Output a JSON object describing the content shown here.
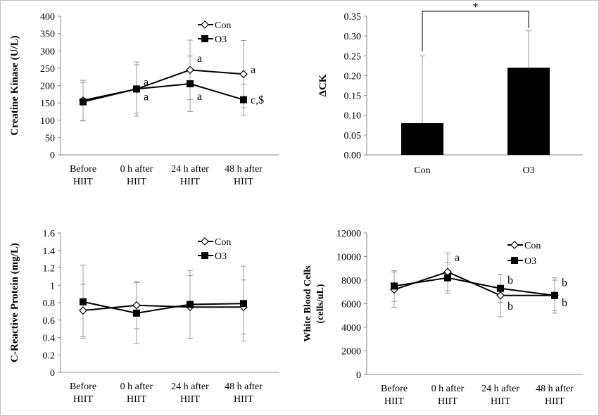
{
  "chart_data": [
    {
      "type": "line",
      "ylabel": "Creatine Kinase (U/L)",
      "ylim": [
        0,
        400
      ],
      "yticks": [
        0,
        50,
        100,
        150,
        200,
        250,
        300,
        350,
        400
      ],
      "categories": [
        [
          "Before",
          "HIIT"
        ],
        [
          "0 h after",
          "HIIT"
        ],
        [
          "24 h after",
          "HIIT"
        ],
        [
          "48 h after",
          "HIIT"
        ]
      ],
      "legend_position": "top-right",
      "series": [
        {
          "name": "Con",
          "marker": "diamond-open",
          "values": [
            157,
            190,
            245,
            233
          ],
          "error": [
            58,
            78,
            86,
            97
          ]
        },
        {
          "name": "O3",
          "marker": "square-filled",
          "values": [
            153,
            190,
            205,
            159
          ],
          "error": [
            55,
            70,
            80,
            45
          ]
        }
      ],
      "annotations": [
        {
          "category": 1,
          "value": 200,
          "text": "a"
        },
        {
          "category": 1,
          "value": 157,
          "text": "a"
        },
        {
          "category": 2,
          "value": 268,
          "text": "a"
        },
        {
          "category": 2,
          "value": 158,
          "text": "a"
        },
        {
          "category": 3,
          "value": 236,
          "text": "a"
        },
        {
          "category": 3,
          "value": 148,
          "text": "c,$"
        }
      ]
    },
    {
      "type": "bar",
      "ylabel": "ΔCK",
      "ylim": [
        0,
        0.35
      ],
      "yticks": [
        "0.00",
        "0.05",
        "0.10",
        "0.15",
        "0.20",
        "0.25",
        "0.30",
        "0.35"
      ],
      "categories": [
        "Con",
        "O3"
      ],
      "values": [
        0.08,
        0.22
      ],
      "error": [
        0.17,
        0.093
      ],
      "bar_color": "#000000",
      "significance": {
        "text": "*"
      }
    },
    {
      "type": "line",
      "ylabel": "C-Reactive Protein (mg/L)",
      "ylim": [
        0,
        1.6
      ],
      "yticks": [
        "0",
        "0.2",
        "0.4",
        "0.6",
        "0.8",
        "1",
        "1.2",
        "1.4",
        "1.6"
      ],
      "categories": [
        [
          "Before",
          "HIIT"
        ],
        [
          "0 h after",
          "HIIT"
        ],
        [
          "24 h after",
          "HIIT"
        ],
        [
          "48 h after",
          "HIIT"
        ]
      ],
      "legend_position": "top-right",
      "series": [
        {
          "name": "Con",
          "marker": "diamond-open",
          "values": [
            0.71,
            0.77,
            0.75,
            0.75
          ],
          "error": [
            0.3,
            0.27,
            0.36,
            0.31
          ]
        },
        {
          "name": "O3",
          "marker": "square-filled",
          "values": [
            0.81,
            0.68,
            0.78,
            0.79
          ],
          "error": [
            0.42,
            0.35,
            0.39,
            0.43
          ]
        }
      ],
      "annotations": []
    },
    {
      "type": "line",
      "ylabel": "White Blood Cells (cells/uL)",
      "ylim": [
        0,
        12000
      ],
      "yticks": [
        0,
        2000,
        4000,
        6000,
        8000,
        10000,
        12000
      ],
      "categories": [
        [
          "Before",
          "HIIT"
        ],
        [
          "0 h after",
          "HIIT"
        ],
        [
          "24 h after",
          "HIIT"
        ],
        [
          "48 h after",
          "HIIT"
        ]
      ],
      "legend_position": "top-right",
      "series": [
        {
          "name": "Con",
          "marker": "diamond-open",
          "values": [
            7200,
            8700,
            6700,
            6700
          ],
          "error": [
            1500,
            1600,
            1800,
            1500
          ]
        },
        {
          "name": "O3",
          "marker": "square-filled",
          "values": [
            7500,
            8200,
            7300,
            6700
          ],
          "error": [
            1300,
            1300,
            1200,
            1300
          ]
        }
      ],
      "annotations": [
        {
          "category": 1,
          "value": 9600,
          "text": "a"
        },
        {
          "category": 2,
          "value": 7700,
          "text": "b"
        },
        {
          "category": 2,
          "value": 5500,
          "text": "b"
        },
        {
          "category": 3,
          "value": 7500,
          "text": "b"
        },
        {
          "category": 3,
          "value": 5800,
          "text": "b"
        }
      ]
    }
  ]
}
